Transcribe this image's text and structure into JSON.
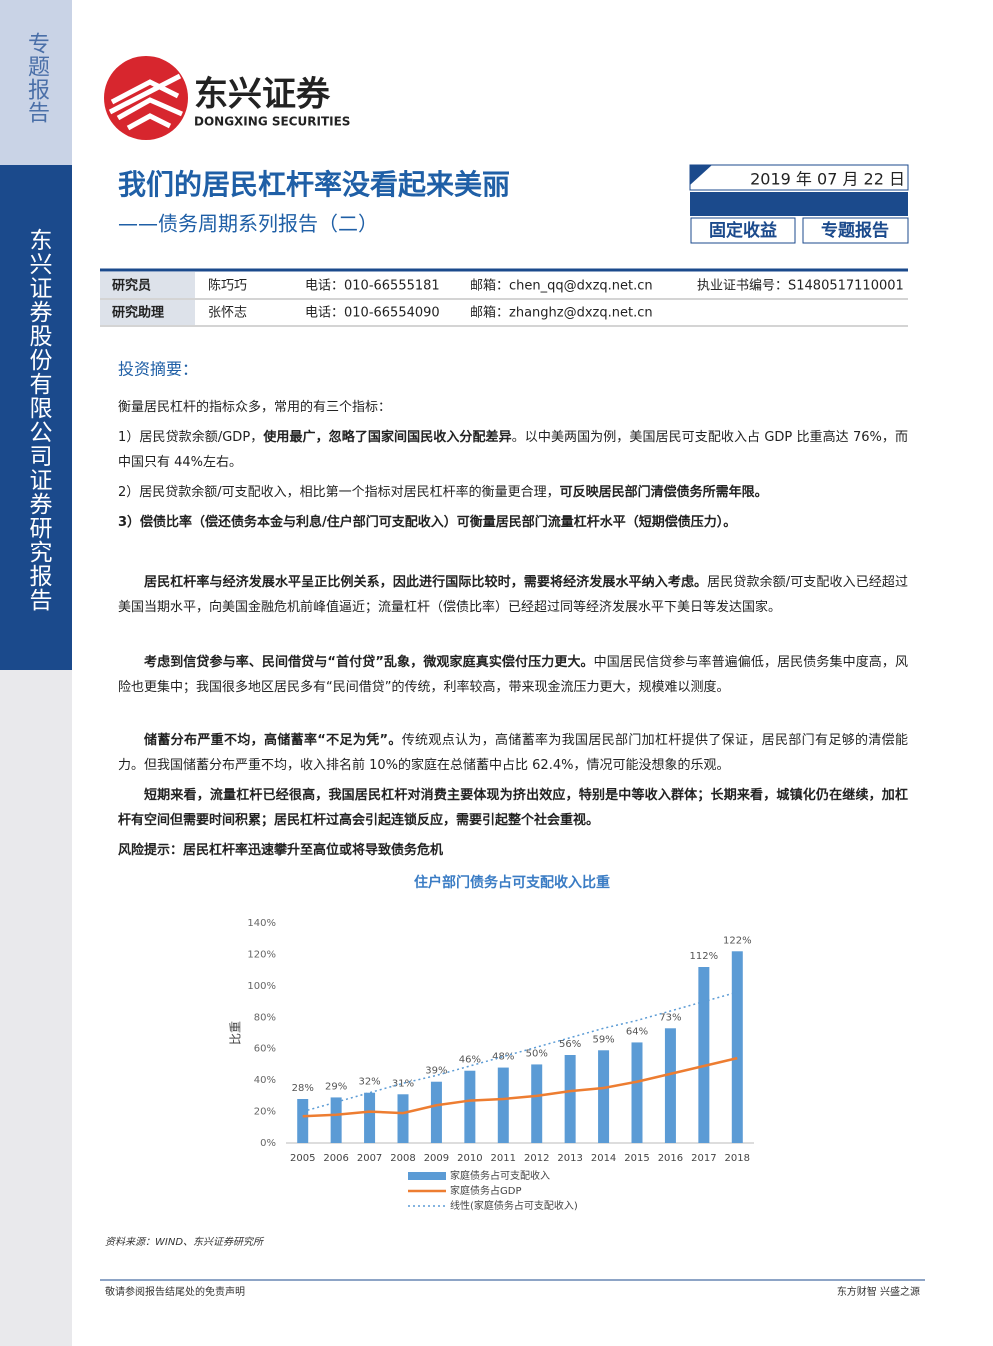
{
  "sidebar": {
    "tag": "专题报告",
    "company": "东兴证券股份有限公司证券研究报告"
  },
  "logo": {
    "cn": "东兴证券",
    "en": "DONGXING SECURITIES"
  },
  "header": {
    "title": "我们的居民杠杆率没看起来美丽",
    "subtitle": "——债务周期系列报告（二）",
    "date": "2019 年 07 月 22 日",
    "tags": [
      "固定收益",
      "专题报告"
    ]
  },
  "analysts": {
    "rows": [
      [
        "研究员",
        "陈巧巧",
        "电话：010-66555181",
        "邮箱：chen_qq@dxzq.net.cn",
        "执业证书编号：S1480517110001"
      ],
      [
        "研究助理",
        "张怀志",
        "电话：010-66554090",
        "邮箱：zhanghz@dxzq.net.cn"
      ]
    ]
  },
  "summary": {
    "heading": "投资摘要：",
    "paragraphs": [
      {
        "runs": [
          {
            "text": "衡量居民杠杆的指标众多，常用的有三个指标：",
            "bold": false
          }
        ]
      },
      {
        "runs": [
          {
            "text": "1）居民贷款余额/GDP，",
            "bold": false
          },
          {
            "text": "使用最广，忽略了国家间国民收入分配差异",
            "bold": true
          },
          {
            "text": "。以中美两国为例，美国居民可支配收入占 GDP 比重高达 76%，而中国只有 44%左右。",
            "bold": false
          }
        ]
      },
      {
        "runs": [
          {
            "text": "2）居民贷款余额/可支配收入，相比第一个指标对居民杠杆率的衡量更合理，",
            "bold": false
          },
          {
            "text": "可反映居民部门清偿债务所需年限。",
            "bold": true
          }
        ]
      },
      {
        "runs": [
          {
            "text": "3）偿债比率（偿还债务本金与利息/住户部门可支配收入）可衡量居民部门流量杠杆水平（短期偿债压力）。",
            "bold": true
          }
        ]
      },
      {
        "indent": true,
        "runs": [
          {
            "text": "居民杠杆率与经济发展水平呈正比例关系，因此进行国际比较时，需要将经济发展水平纳入考虑。",
            "bold": true
          },
          {
            "text": "居民贷款余额/可支配收入已经超过美国当期水平，向美国金融危机前峰值逼近；流量杠杆（偿债比率）已经超过同等经济发展水平下美日等发达国家。",
            "bold": false
          }
        ]
      },
      {
        "indent": true,
        "runs": [
          {
            "text": "考虑到信贷参与率、民间借贷与“首付贷”乱象，微观家庭真实偿付压力更大。",
            "bold": true
          },
          {
            "text": "中国居民信贷参与率普遍偏低，居民债务集中度高，风险也更集中；我国很多地区居民多有“民间借贷”的传统，利率较高，带来现金流压力更大，规模难以测度。",
            "bold": false
          }
        ]
      },
      {
        "indent": true,
        "runs": [
          {
            "text": "储蓄分布严重不均，高储蓄率“不足为凭”。",
            "bold": true
          },
          {
            "text": "传统观点认为，高储蓄率为我国居民部门加杠杆提供了保证，居民部门有足够的清偿能力。但我国储蓄分布严重不均，收入排名前 10%的家庭在总储蓄中占比 62.4%，情况可能没想象的乐观。",
            "bold": false
          }
        ]
      },
      {
        "indent": true,
        "runs": [
          {
            "text": "短期来看，流量杠杆已经很高，我国居民杠杆对消费主要体现为挤出效应，特别是中等收入群体；长期来看，城镇化仍在继续，加杠杆有空间但需要时间积累；居民杠杆过高会引起连锁反应，需要引起整个社会重视。",
            "bold": true
          }
        ]
      },
      {
        "runs": [
          {
            "text": "风险提示：居民杠杆率迅速攀升至高位或将导致债务危机",
            "bold": true
          }
        ]
      }
    ]
  },
  "chart_data": {
    "type": "bar",
    "title": "住户部门债务占可支配收入比重",
    "y_label": "比重",
    "categories": [
      "2005",
      "2006",
      "2007",
      "2008",
      "2009",
      "2010",
      "2011",
      "2012",
      "2013",
      "2014",
      "2015",
      "2016",
      "2017",
      "2018"
    ],
    "series": [
      {
        "name": "家庭债务占可支配收入",
        "type": "bar",
        "color": "#5b9bd5",
        "values": [
          28,
          29,
          32,
          31,
          39,
          46,
          48,
          50,
          56,
          59,
          64,
          73,
          112,
          122
        ],
        "value_labels": [
          "28%",
          "29%",
          "32%",
          "31%",
          "39%",
          "46%",
          "48%",
          "50%",
          "56%",
          "59%",
          "64%",
          "73%",
          "112%",
          "122%"
        ]
      },
      {
        "name": "家庭债务占GDP",
        "type": "line",
        "color": "#ed7d31",
        "values": [
          17,
          18,
          20,
          19,
          24,
          27,
          28,
          30,
          33,
          35,
          39,
          44,
          49,
          54
        ]
      },
      {
        "name": "线性(家庭债务占可支配收入)",
        "type": "line",
        "dashed": true,
        "color": "#5b9bd5",
        "values": [
          20,
          26,
          32,
          38,
          43,
          49,
          55,
          61,
          67,
          73,
          78,
          84,
          90,
          96
        ]
      }
    ],
    "ylim": [
      0,
      140
    ],
    "yticks": [
      {
        "value": 0,
        "label": "0%"
      },
      {
        "value": 20,
        "label": "20%"
      },
      {
        "value": 40,
        "label": "40%"
      },
      {
        "value": 60,
        "label": "60%"
      },
      {
        "value": 80,
        "label": "80%"
      },
      {
        "value": 100,
        "label": "100%"
      },
      {
        "value": 120,
        "label": "120%"
      },
      {
        "value": 140,
        "label": "140%"
      }
    ],
    "grid": false
  },
  "source": "资料来源：WIND、东兴证券研究所",
  "footer": {
    "left": "敬请参阅报告结尾处的免责声明",
    "right": "东方财智 兴盛之源"
  }
}
